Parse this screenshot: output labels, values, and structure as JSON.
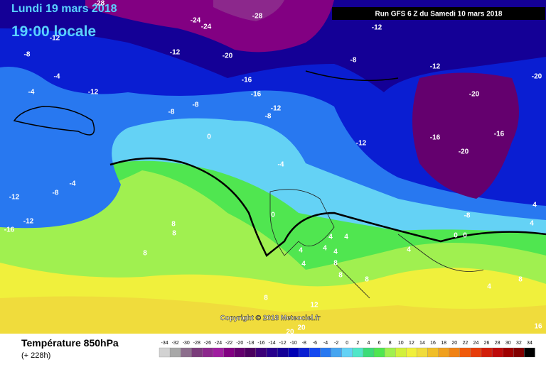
{
  "header": {
    "date": "Lundi 19 mars 2018",
    "time": "19:00 locale",
    "run": "Run GFS 6 Z du Samedi 10 mars 2018"
  },
  "copyright": "Copyright © 2018 Meteociel.fr",
  "footer": {
    "title": "Température 850hPa",
    "lead": "(+ 228h)"
  },
  "scale": {
    "values": [
      -34,
      -32,
      -30,
      -28,
      -26,
      -24,
      -22,
      -20,
      -18,
      -16,
      -14,
      -12,
      -10,
      -8,
      -6,
      -4,
      -2,
      0,
      2,
      4,
      6,
      8,
      10,
      12,
      14,
      16,
      18,
      20,
      22,
      24,
      26,
      28,
      30,
      32,
      34
    ],
    "colors": [
      "#d2d2d2",
      "#a8a8a8",
      "#8c6e8c",
      "#7a3c7a",
      "#8c288c",
      "#a01ea0",
      "#820082",
      "#64006e",
      "#4b005f",
      "#3c0078",
      "#28008c",
      "#140096",
      "#0000b4",
      "#0a1ed2",
      "#1448f0",
      "#2878f0",
      "#46a5f0",
      "#64d2f5",
      "#50e6c8",
      "#3cdc78",
      "#50e650",
      "#a0f050",
      "#d2f03c",
      "#f0f03c",
      "#f0dc3c",
      "#f0be28",
      "#f0a01e",
      "#f08214",
      "#f05a0a",
      "#e63c0a",
      "#d21e0a",
      "#be0a0a",
      "#a00000",
      "#820000",
      "#000000"
    ]
  },
  "map_labels": [
    -28,
    -28,
    -24,
    -24,
    -12,
    -12,
    -8,
    -12,
    -20,
    -8,
    -12,
    -20,
    -4,
    -4,
    -12,
    -16,
    -16,
    -20,
    -8,
    -8,
    -12,
    -8,
    0,
    -16,
    -16,
    -12,
    -20,
    -4,
    -4,
    -8,
    -12,
    -12,
    -16,
    0,
    -8,
    8,
    8,
    8,
    4,
    4,
    4,
    4,
    4,
    4,
    8,
    4,
    8,
    8,
    8,
    4,
    4,
    4,
    8,
    12,
    16,
    20,
    20,
    0,
    0
  ]
}
